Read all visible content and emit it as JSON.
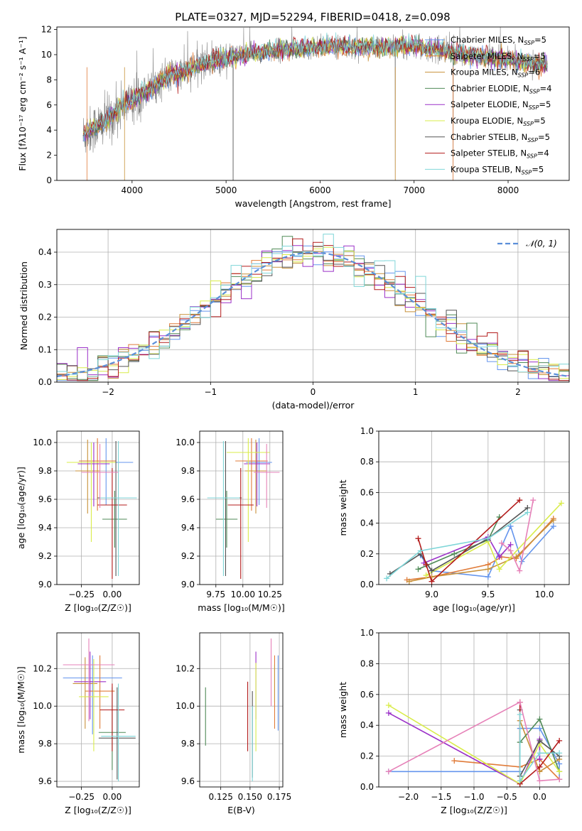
{
  "figure_title": "PLATE=0327, MJD=52294, FIBERID=0418, z=0.098",
  "colors": {
    "Chabrier MILES": "#6495ed",
    "Salpeter MILES": "#e07b39",
    "Kroupa MILES": "#c8913a",
    "Chabrier ELODIE": "#4f8a57",
    "Salpeter ELODIE": "#9b30c8",
    "Kroupa ELODIE": "#d9ec4a",
    "Chabrier STELIB": "#555555",
    "Salpeter STELIB": "#b31b1b",
    "Kroupa STELIB": "#7fd6d8",
    "pink": "#e681b8",
    "gaussian": "#5b8fd9",
    "spectrum": "#808080"
  },
  "chart_data": [
    {
      "id": "spectrum",
      "type": "line",
      "xlabel": "wavelength [Angstrom, rest frame]",
      "ylabel": "Flux [fλ10⁻¹⁷ erg cm⁻² s⁻¹ A⁻¹]",
      "xlim": [
        3200,
        8650
      ],
      "ylim": [
        0,
        12.2
      ],
      "xticks": [
        "4000",
        "5000",
        "6000",
        "7000",
        "8000"
      ],
      "yticks": [
        "0",
        "2",
        "4",
        "6",
        "8",
        "10",
        "12"
      ],
      "grid": false,
      "legend_position": "right",
      "legend": [
        {
          "name": "Chabrier MILES, N",
          "sub": "SSP",
          "suffix": "=5",
          "color": "#6495ed"
        },
        {
          "name": "Salpeter MILES, N",
          "sub": "SSP",
          "suffix": "=5",
          "color": "#e07b39"
        },
        {
          "name": "Kroupa MILES, N",
          "sub": "SSP",
          "suffix": "=6",
          "color": "#c8913a"
        },
        {
          "name": "Chabrier ELODIE, N",
          "sub": "SSP",
          "suffix": "=4",
          "color": "#4f8a57"
        },
        {
          "name": "Salpeter ELODIE, N",
          "sub": "SSP",
          "suffix": "=5",
          "color": "#9b30c8"
        },
        {
          "name": "Kroupa ELODIE, N",
          "sub": "SSP",
          "suffix": "=5",
          "color": "#d9ec4a"
        },
        {
          "name": "Chabrier STELIB, N",
          "sub": "SSP",
          "suffix": "=5",
          "color": "#555555"
        },
        {
          "name": "Salpeter STELIB, N",
          "sub": "SSP",
          "suffix": "=4",
          "color": "#b31b1b"
        },
        {
          "name": "Kroupa STELIB, N",
          "sub": "SSP",
          "suffix": "=5",
          "color": "#7fd6d8"
        }
      ],
      "continuum_x": [
        3480,
        3600,
        3700,
        3800,
        3900,
        4000,
        4100,
        4200,
        4300,
        4400,
        4500,
        4600,
        4700,
        4800,
        4900,
        5000,
        5200,
        5400,
        5600,
        5800,
        6000,
        6200,
        6400,
        6600,
        6800,
        7000,
        7200,
        7400,
        7600,
        7800,
        8000,
        8200,
        8400
      ],
      "continuum_y": [
        3.6,
        4.2,
        4.6,
        5.2,
        6.0,
        6.3,
        7.0,
        7.2,
        7.9,
        8.3,
        8.5,
        8.8,
        9.1,
        9.4,
        9.6,
        9.7,
        10.0,
        10.2,
        10.4,
        10.5,
        10.6,
        10.7,
        10.6,
        10.6,
        10.6,
        10.7,
        10.4,
        10.2,
        9.9,
        9.8,
        9.6,
        9.4,
        9.2
      ]
    },
    {
      "id": "residuals",
      "type": "step",
      "xlabel": "(data-model)/error",
      "ylabel": "Normed distribution",
      "xlim": [
        -2.5,
        2.5
      ],
      "ylim": [
        0,
        0.47
      ],
      "xticks": [
        "−2",
        "−1",
        "0",
        "1",
        "2"
      ],
      "yticks": [
        "0.0",
        "0.1",
        "0.2",
        "0.3",
        "0.4"
      ],
      "grid": true,
      "legend_position": "top-right",
      "legend": [
        {
          "name": "𝒩(0, 1)",
          "color": "#5b8fd9",
          "style": "dashed"
        }
      ],
      "model": "normal pdf, mean 0, sigma 1",
      "bin_width": 0.1,
      "series_count": 9
    },
    {
      "id": "metal-age",
      "type": "scatter",
      "style": "errorbar",
      "xlabel": "Z [log₁₀(Z/Z☉)]",
      "ylabel": "age  [log₁₀(age/yr)]",
      "xlim": [
        -0.45,
        0.22
      ],
      "ylim": [
        9.0,
        10.08
      ],
      "xticks": [
        "−0.25",
        "0.00"
      ],
      "yticks": [
        "9.0",
        "9.2",
        "9.4",
        "9.6",
        "9.8",
        "10.0"
      ],
      "grid": true,
      "points": [
        {
          "x": -0.05,
          "xerr": 0.22,
          "y": 9.86,
          "yerr_up": 0.17,
          "yerr_down": 0.3,
          "color": "#6495ed"
        },
        {
          "x": -0.12,
          "xerr": 0.15,
          "y": 9.87,
          "yerr_up": 0.16,
          "yerr_down": 0.35,
          "color": "#e07b39"
        },
        {
          "x": -0.2,
          "xerr": 0.1,
          "y": 9.8,
          "yerr_up": 0.22,
          "yerr_down": 0.3,
          "color": "#c8913a"
        },
        {
          "x": 0.02,
          "xerr": 0.1,
          "y": 9.46,
          "yerr_up": 0.2,
          "yerr_down": 0.2,
          "color": "#4f8a57"
        },
        {
          "x": -0.15,
          "xerr": 0.13,
          "y": 9.85,
          "yerr_up": 0.15,
          "yerr_down": 0.3,
          "color": "#9b30c8"
        },
        {
          "x": -0.17,
          "xerr": 0.2,
          "y": 9.86,
          "yerr_up": 0.14,
          "yerr_down": 0.56,
          "color": "#d9ec4a"
        },
        {
          "x": 0.03,
          "xerr": 0.15,
          "y": 9.61,
          "yerr_up": 0.4,
          "yerr_down": 0.55,
          "color": "#555555"
        },
        {
          "x": 0.0,
          "xerr": 0.12,
          "y": 9.56,
          "yerr_up": 0.26,
          "yerr_down": 0.52,
          "color": "#b31b1b"
        },
        {
          "x": 0.05,
          "xerr": 0.15,
          "y": 9.61,
          "yerr_up": 0.4,
          "yerr_down": 0.55,
          "color": "#7fd6d8"
        },
        {
          "x": -0.1,
          "xerr": 0.15,
          "y": 9.79,
          "yerr_up": 0.2,
          "yerr_down": 0.25,
          "color": "#e681b8"
        }
      ]
    },
    {
      "id": "mass-age",
      "type": "scatter",
      "style": "errorbar",
      "xlabel": "mass [log₁₀(M/M☉)]",
      "ylabel": "",
      "xlim": [
        9.6,
        10.37
      ],
      "ylim": [
        9.0,
        10.08
      ],
      "xticks": [
        "9.75",
        "10.00",
        "10.25"
      ],
      "yticks": [
        "9.0",
        "9.2",
        "9.4",
        "9.6",
        "9.8",
        "10.0"
      ],
      "grid": true,
      "points": [
        {
          "x": 10.15,
          "xerr": 0.12,
          "y": 9.86,
          "yerr_up": 0.17,
          "yerr_down": 0.3,
          "color": "#6495ed"
        },
        {
          "x": 10.08,
          "xerr": 0.15,
          "y": 9.87,
          "yerr_up": 0.16,
          "yerr_down": 0.35,
          "color": "#e07b39"
        },
        {
          "x": 10.12,
          "xerr": 0.1,
          "y": 9.8,
          "yerr_up": 0.22,
          "yerr_down": 0.3,
          "color": "#c8913a"
        },
        {
          "x": 9.85,
          "xerr": 0.1,
          "y": 9.46,
          "yerr_up": 0.2,
          "yerr_down": 0.2,
          "color": "#4f8a57"
        },
        {
          "x": 10.13,
          "xerr": 0.12,
          "y": 9.85,
          "yerr_up": 0.15,
          "yerr_down": 0.3,
          "color": "#9b30c8"
        },
        {
          "x": 10.05,
          "xerr": 0.2,
          "y": 9.93,
          "yerr_up": 0.1,
          "yerr_down": 0.63,
          "color": "#d9ec4a"
        },
        {
          "x": 9.84,
          "xerr": 0.15,
          "y": 9.61,
          "yerr_up": 0.4,
          "yerr_down": 0.55,
          "color": "#555555"
        },
        {
          "x": 9.98,
          "xerr": 0.12,
          "y": 9.56,
          "yerr_up": 0.26,
          "yerr_down": 0.52,
          "color": "#b31b1b"
        },
        {
          "x": 9.82,
          "xerr": 0.15,
          "y": 9.61,
          "yerr_up": 0.4,
          "yerr_down": 0.55,
          "color": "#7fd6d8"
        },
        {
          "x": 10.22,
          "xerr": 0.12,
          "y": 9.79,
          "yerr_up": 0.2,
          "yerr_down": 0.25,
          "color": "#e681b8"
        }
      ]
    },
    {
      "id": "age-weight",
      "type": "line",
      "marker": "+",
      "xlabel": "age  [log₁₀(age/yr)]",
      "ylabel": "mass weight",
      "xlim": [
        8.53,
        10.22
      ],
      "ylim": [
        0,
        1.0
      ],
      "xticks": [
        "9.0",
        "9.5",
        "10.0"
      ],
      "yticks": [
        "0.0",
        "0.2",
        "0.4",
        "0.6",
        "0.8",
        "1.0"
      ],
      "grid": true,
      "series": [
        {
          "color": "#6495ed",
          "x": [
            8.9,
            9.0,
            9.5,
            9.7,
            9.8,
            10.08
          ],
          "y": [
            0.19,
            0.09,
            0.05,
            0.38,
            0.15,
            0.38
          ]
        },
        {
          "color": "#e07b39",
          "x": [
            8.78,
            9.0,
            9.5,
            9.62,
            9.75,
            10.08
          ],
          "y": [
            0.03,
            0.05,
            0.13,
            0.18,
            0.17,
            0.43
          ]
        },
        {
          "color": "#c8913a",
          "x": [
            8.8,
            9.0,
            9.5,
            9.75,
            10.08
          ],
          "y": [
            0.02,
            0.05,
            0.1,
            0.18,
            0.42
          ]
        },
        {
          "color": "#4f8a57",
          "x": [
            8.88,
            9.2,
            9.5,
            9.6
          ],
          "y": [
            0.1,
            0.2,
            0.29,
            0.44
          ]
        },
        {
          "color": "#9b30c8",
          "x": [
            8.93,
            9.5,
            9.6,
            9.7
          ],
          "y": [
            0.14,
            0.31,
            0.18,
            0.26
          ]
        },
        {
          "color": "#d9ec4a",
          "x": [
            8.95,
            9.5,
            9.6,
            10.15
          ],
          "y": [
            0.06,
            0.28,
            0.1,
            0.53
          ]
        },
        {
          "color": "#555555",
          "x": [
            8.63,
            8.9,
            9.0,
            9.5,
            9.85
          ],
          "y": [
            0.07,
            0.2,
            0.09,
            0.3,
            0.5
          ]
        },
        {
          "color": "#b31b1b",
          "x": [
            8.88,
            8.95,
            9.0,
            9.78
          ],
          "y": [
            0.3,
            0.13,
            0.02,
            0.55
          ]
        },
        {
          "color": "#7fd6d8",
          "x": [
            8.6,
            8.9,
            9.5,
            9.85
          ],
          "y": [
            0.04,
            0.22,
            0.3,
            0.47
          ]
        },
        {
          "color": "#e681b8",
          "x": [
            9.62,
            9.7,
            9.78,
            9.9
          ],
          "y": [
            0.27,
            0.22,
            0.09,
            0.55
          ]
        }
      ]
    },
    {
      "id": "metal-mass",
      "type": "scatter",
      "style": "errorbar",
      "xlabel": "Z [log₁₀(Z/Z☉)]",
      "ylabel": "mass [log₁₀(M/M☉)]",
      "xlim": [
        -0.45,
        0.22
      ],
      "ylim": [
        9.57,
        10.39
      ],
      "xticks": [
        "−0.25",
        "0.00"
      ],
      "yticks": [
        "9.6",
        "9.8",
        "10.0",
        "10.2"
      ],
      "grid": true,
      "points": [
        {
          "x": -0.16,
          "xerr": 0.24,
          "y": 10.15,
          "yerr_up": 0.12,
          "yerr_down": 0.3,
          "color": "#6495ed"
        },
        {
          "x": -0.1,
          "xerr": 0.12,
          "y": 10.08,
          "yerr_up": 0.19,
          "yerr_down": 0.2,
          "color": "#e07b39"
        },
        {
          "x": -0.22,
          "xerr": 0.1,
          "y": 10.12,
          "yerr_up": 0.14,
          "yerr_down": 0.24,
          "color": "#c8913a"
        },
        {
          "x": 0.0,
          "xerr": 0.11,
          "y": 9.86,
          "yerr_up": 0.24,
          "yerr_down": 0.2,
          "color": "#4f8a57"
        },
        {
          "x": -0.18,
          "xerr": 0.13,
          "y": 10.13,
          "yerr_up": 0.16,
          "yerr_down": 0.2,
          "color": "#9b30c8"
        },
        {
          "x": -0.15,
          "xerr": 0.12,
          "y": 10.05,
          "yerr_up": 0.2,
          "yerr_down": 0.29,
          "color": "#d9ec4a"
        },
        {
          "x": 0.04,
          "xerr": 0.15,
          "y": 9.83,
          "yerr_up": 0.27,
          "yerr_down": 0.22,
          "color": "#555555"
        },
        {
          "x": 0.0,
          "xerr": 0.1,
          "y": 9.98,
          "yerr_up": 0.14,
          "yerr_down": 0.22,
          "color": "#b31b1b"
        },
        {
          "x": 0.05,
          "xerr": 0.14,
          "y": 9.84,
          "yerr_up": 0.28,
          "yerr_down": 0.24,
          "color": "#7fd6d8"
        },
        {
          "x": -0.19,
          "xerr": 0.21,
          "y": 10.22,
          "yerr_up": 0.14,
          "yerr_down": 0.3,
          "color": "#e681b8"
        }
      ]
    },
    {
      "id": "ebv-mass",
      "type": "scatter",
      "style": "errorbar",
      "xlabel": "E(B-V)",
      "ylabel": "",
      "xlim": [
        0.107,
        0.178
      ],
      "ylim": [
        9.57,
        10.39
      ],
      "xticks": [
        "0.125",
        "0.150",
        "0.175"
      ],
      "yticks": [
        "9.6",
        "9.8",
        "10.0",
        "10.2"
      ],
      "grid": true,
      "points": [
        {
          "x": 0.174,
          "y": 10.15,
          "yerr_up": 0.12,
          "yerr_down": 0.28,
          "color": "#6495ed"
        },
        {
          "x": 0.171,
          "y": 10.08,
          "yerr_up": 0.19,
          "yerr_down": 0.2,
          "color": "#e07b39"
        },
        {
          "x": 0.171,
          "y": 10.12,
          "yerr_up": 0.1,
          "yerr_down": 0.1,
          "color": "#c8913a"
        },
        {
          "x": 0.112,
          "y": 9.94,
          "yerr_up": 0.16,
          "yerr_down": 0.15,
          "color": "#4f8a57"
        },
        {
          "x": 0.155,
          "y": 10.13,
          "yerr_up": 0.16,
          "yerr_down": 0.2,
          "color": "#9b30c8"
        },
        {
          "x": 0.155,
          "y": 10.03,
          "yerr_up": 0.2,
          "yerr_down": 0.27,
          "color": "#d9ec4a"
        },
        {
          "x": 0.152,
          "y": 9.84,
          "yerr_up": 0.24,
          "yerr_down": 0.22,
          "color": "#555555"
        },
        {
          "x": 0.148,
          "y": 9.98,
          "yerr_up": 0.15,
          "yerr_down": 0.22,
          "color": "#b31b1b"
        },
        {
          "x": 0.152,
          "y": 9.8,
          "yerr_up": 0.2,
          "yerr_down": 0.2,
          "color": "#7fd6d8"
        },
        {
          "x": 0.168,
          "y": 10.2,
          "yerr_up": 0.16,
          "yerr_down": 0.2,
          "color": "#e681b8"
        }
      ]
    },
    {
      "id": "metal-weight",
      "type": "line",
      "marker": "+",
      "xlabel": "Z [log₁₀(Z/Z☉)]",
      "ylabel": "mass weight",
      "xlim": [
        -2.45,
        0.45
      ],
      "ylim": [
        0,
        1.0
      ],
      "xticks": [
        "−2.0",
        "−1.5",
        "−1.0",
        "−0.5",
        "0.0"
      ],
      "yticks": [
        "0.0",
        "0.2",
        "0.4",
        "0.6",
        "0.8",
        "1.0"
      ],
      "grid": true,
      "series": [
        {
          "color": "#6495ed",
          "x": [
            -2.3,
            -0.3,
            -0.3,
            0.0,
            0.3,
            0.3
          ],
          "y": [
            0.1,
            0.1,
            0.38,
            0.38,
            0.15,
            0.05
          ]
        },
        {
          "color": "#e07b39",
          "x": [
            -1.3,
            -0.3,
            0.0,
            0.3
          ],
          "y": [
            0.17,
            0.13,
            0.18,
            0.05
          ]
        },
        {
          "color": "#c8913a",
          "x": [
            -0.3,
            -0.3,
            0.0,
            0.3
          ],
          "y": [
            0.02,
            0.43,
            0.1,
            0.18
          ]
        },
        {
          "color": "#4f8a57",
          "x": [
            -0.3,
            0.0,
            0.3
          ],
          "y": [
            0.29,
            0.44,
            0.1
          ]
        },
        {
          "color": "#9b30c8",
          "x": [
            -2.3,
            -0.3,
            0.0,
            0.0
          ],
          "y": [
            0.48,
            0.02,
            0.31,
            0.18
          ]
        },
        {
          "color": "#d9ec4a",
          "x": [
            -2.3,
            -0.3,
            0.0,
            0.3
          ],
          "y": [
            0.53,
            0.02,
            0.28,
            0.1
          ]
        },
        {
          "color": "#555555",
          "x": [
            -0.3,
            -0.3,
            0.0,
            0.3
          ],
          "y": [
            0.5,
            0.07,
            0.3,
            0.2
          ]
        },
        {
          "color": "#b31b1b",
          "x": [
            -0.3,
            -0.3,
            0.0,
            0.3
          ],
          "y": [
            0.55,
            0.02,
            0.13,
            0.3
          ]
        },
        {
          "color": "#7fd6d8",
          "x": [
            -0.3,
            -0.3,
            0.0,
            0.3
          ],
          "y": [
            0.47,
            0.04,
            0.22,
            0.22
          ]
        },
        {
          "color": "#e681b8",
          "x": [
            -2.3,
            -0.3,
            0.0,
            0.3
          ],
          "y": [
            0.1,
            0.55,
            0.04,
            0.05
          ]
        }
      ]
    }
  ]
}
